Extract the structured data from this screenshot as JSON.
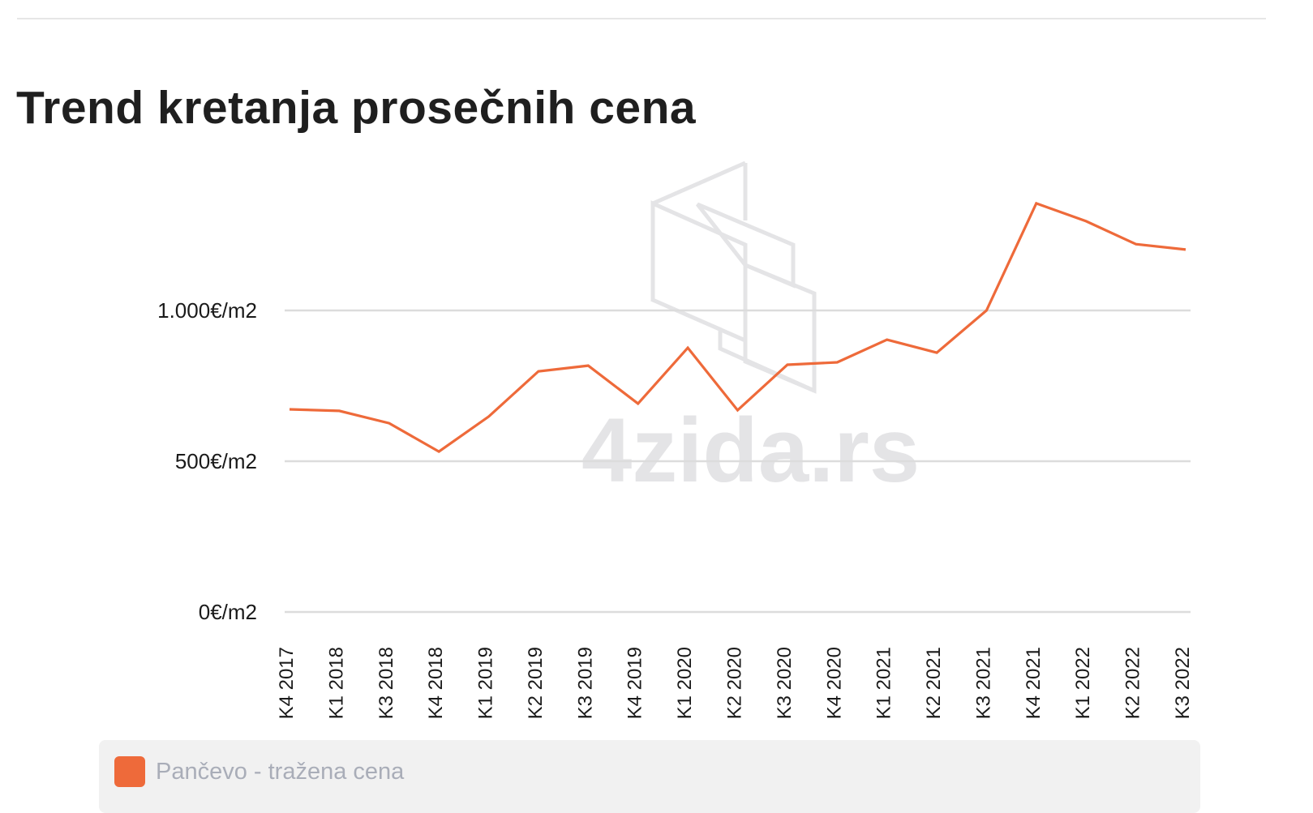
{
  "page": {
    "title": "Trend kretanja prosečnih cena"
  },
  "colors": {
    "series": "#ee6a3a",
    "grid": "#dcdcdc",
    "watermark": "#e4e4e6",
    "legend_bg": "#f1f1f1",
    "legend_text": "#a9adb8"
  },
  "watermark": {
    "text": "4zida.rs"
  },
  "legend": {
    "items": [
      {
        "label": "Pančevo - tražena cena",
        "color": "#ee6a3a"
      }
    ]
  },
  "chart_data": {
    "type": "line",
    "title": "Trend kretanja prosečnih cena",
    "xlabel": "",
    "ylabel": "",
    "ylim": [
      0,
      1500
    ],
    "y_ticks": [
      0,
      500,
      1000
    ],
    "y_tick_labels": [
      "0€/m2",
      "500€/m2",
      "1.000€/m2"
    ],
    "grid": true,
    "legend_position": "bottom",
    "categories": [
      "K4 2017",
      "K1 2018",
      "K3 2018",
      "K4 2018",
      "K1 2019",
      "K2 2019",
      "K3 2019",
      "K4 2019",
      "K1 2020",
      "K2 2020",
      "K3 2020",
      "K4 2020",
      "K1 2021",
      "K2 2021",
      "K3 2021",
      "K4 2021",
      "K1 2022",
      "K2 2022",
      "K3 2022"
    ],
    "series": [
      {
        "name": "Pančevo - tražena cena",
        "color": "#ee6a3a",
        "values": [
          672,
          667,
          626,
          532,
          648,
          798,
          817,
          691,
          876,
          669,
          820,
          828,
          903,
          860,
          1000,
          1355,
          1296,
          1220,
          1202
        ]
      }
    ]
  }
}
